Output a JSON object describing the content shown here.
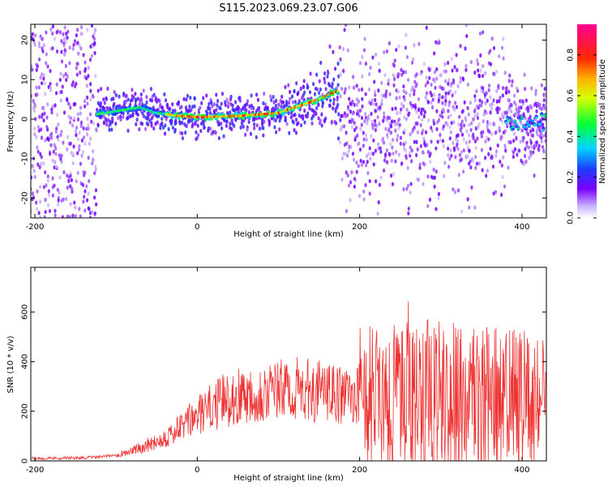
{
  "title": "S115.2023.069.23.07.G06",
  "chart_data": [
    {
      "type": "heatmap",
      "xlabel": "Height of straight line (km)",
      "ylabel": "Frequency (Hz)",
      "xlim": [
        -205,
        430
      ],
      "ylim": [
        -25,
        24
      ],
      "xticks": [
        -200,
        0,
        200,
        400
      ],
      "yticks": [
        20,
        10,
        0,
        -10,
        -20
      ],
      "colorbar": {
        "label": "Normalized spectral amplitude",
        "range": [
          0.0,
          0.95
        ],
        "ticks": [
          0.0,
          0.2,
          0.4,
          0.6,
          0.8
        ],
        "colormap": "rainbow (purple-blue-cyan-green-yellow-orange-red-magenta)"
      },
      "ridge": {
        "description": "frequency of the peak spectral amplitude vs height",
        "x": [
          -130,
          -100,
          -70,
          -50,
          -30,
          0,
          50,
          100,
          120,
          150,
          170
        ],
        "y": [
          1,
          2,
          3,
          1.5,
          1,
          0.5,
          0.8,
          1.5,
          3,
          5,
          7
        ]
      }
    },
    {
      "type": "line",
      "xlabel": "Height of straight line (km)",
      "ylabel": "SNR (10 * v/v)",
      "xlim": [
        -205,
        430
      ],
      "ylim": [
        0,
        780
      ],
      "xticks": [
        -200,
        0,
        200,
        400
      ],
      "yticks": [
        0,
        200,
        400,
        600
      ],
      "series": [
        {
          "color": "#ee3333",
          "x": [
            -205,
            -150,
            -120,
            -100,
            -80,
            -50,
            -30,
            -10,
            10,
            30,
            60,
            90,
            120,
            150,
            180,
            200,
            205,
            250,
            300,
            350,
            400,
            430
          ],
          "y": [
            10,
            12,
            15,
            25,
            40,
            80,
            110,
            160,
            200,
            240,
            270,
            280,
            290,
            280,
            260,
            270,
            250,
            250,
            250,
            240,
            230,
            220
          ]
        }
      ]
    }
  ]
}
